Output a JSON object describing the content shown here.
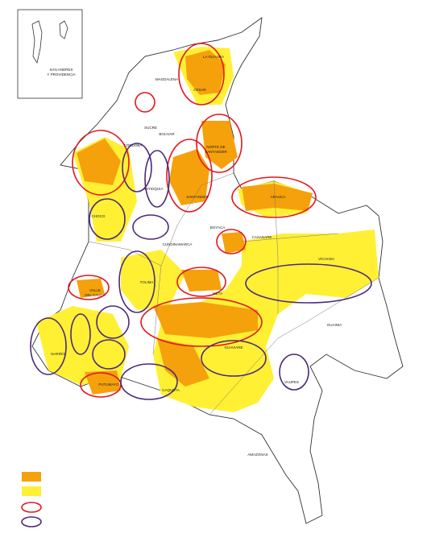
{
  "inset": {
    "lines": [
      "SAN ANDRES",
      "Y PROVIDENCIA"
    ]
  },
  "departments": [
    [
      "LA GUAJIRA"
    ],
    [
      "MAGDALENA"
    ],
    [
      "CESAR"
    ],
    [
      "SUCRE"
    ],
    [
      "BOLIVAR"
    ],
    [
      "CORDOBA"
    ],
    [
      "NORTE DE",
      "SANTANDER"
    ],
    [
      "ANTIOQUIA"
    ],
    [
      "SANTANDER"
    ],
    [
      "ARAUCA"
    ],
    [
      "CHOCO"
    ],
    [
      "BOYACA"
    ],
    [
      "CASANARE"
    ],
    [
      "CUNDINAMARCA"
    ],
    [
      "VICHADA"
    ],
    [
      "TOLIMA"
    ],
    [
      "VALLE",
      "DEL CAUCA"
    ],
    [
      "META"
    ],
    [
      "GUAINIA"
    ],
    [
      "GUAVIARE"
    ],
    [
      "NARIÑO"
    ],
    [
      "VAUPES"
    ],
    [
      "PUTUMAYO"
    ],
    [
      "CAQUETA"
    ],
    [
      "AMAZONAS"
    ]
  ]
}
